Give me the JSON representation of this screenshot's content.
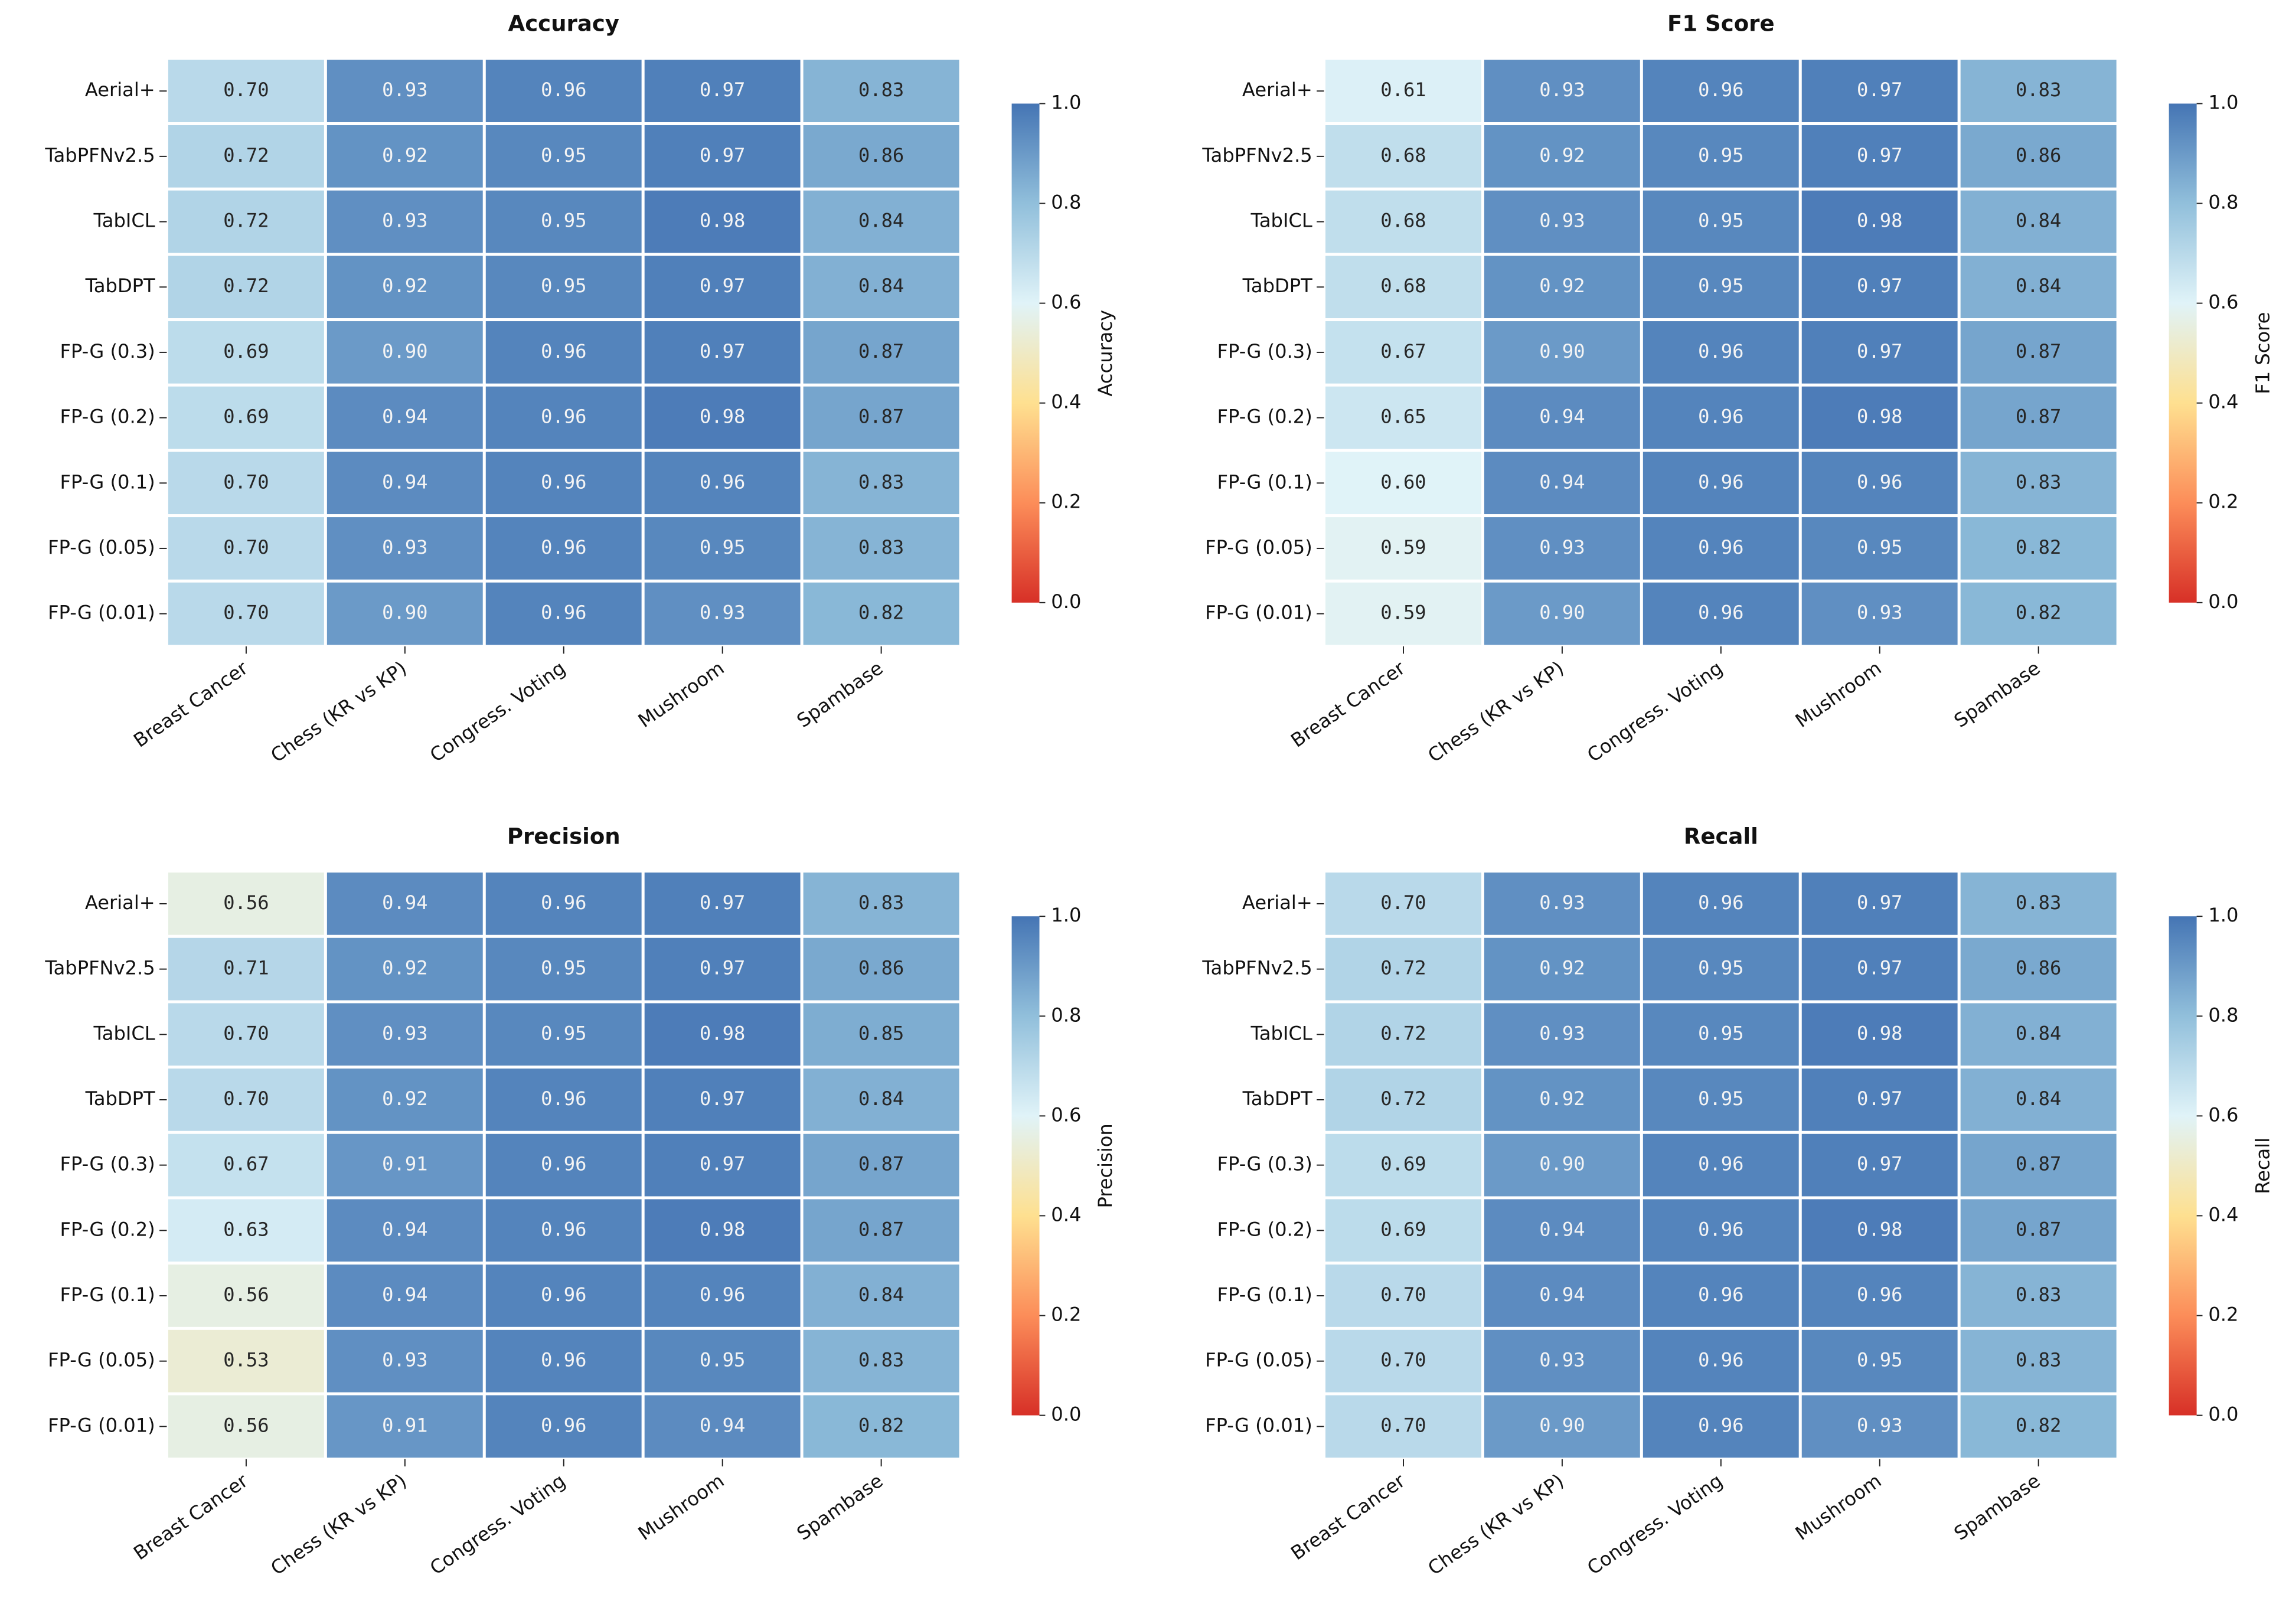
{
  "chart_data": [
    {
      "type": "heatmap",
      "title": "Accuracy",
      "colorbar_label": "Accuracy",
      "categories": [
        "Breast Cancer",
        "Chess (KR vs KP)",
        "Congress. Voting",
        "Mushroom",
        "Spambase"
      ],
      "rows": [
        "Aerial+",
        "TabPFNv2.5",
        "TabICL",
        "TabDPT",
        "FP-G (0.3)",
        "FP-G (0.2)",
        "FP-G (0.1)",
        "FP-G (0.05)",
        "FP-G (0.01)"
      ],
      "values": [
        [
          0.7,
          0.93,
          0.96,
          0.97,
          0.83
        ],
        [
          0.72,
          0.92,
          0.95,
          0.97,
          0.86
        ],
        [
          0.72,
          0.93,
          0.95,
          0.98,
          0.84
        ],
        [
          0.72,
          0.92,
          0.95,
          0.97,
          0.84
        ],
        [
          0.69,
          0.9,
          0.96,
          0.97,
          0.87
        ],
        [
          0.69,
          0.94,
          0.96,
          0.98,
          0.87
        ],
        [
          0.7,
          0.94,
          0.96,
          0.96,
          0.83
        ],
        [
          0.7,
          0.93,
          0.96,
          0.95,
          0.83
        ],
        [
          0.7,
          0.9,
          0.96,
          0.93,
          0.82
        ]
      ],
      "value_labels": [
        [
          "0.70",
          "0.93",
          "0.96",
          "0.97",
          "0.83"
        ],
        [
          "0.72",
          "0.92",
          "0.95",
          "0.97",
          "0.86"
        ],
        [
          "0.72",
          "0.93",
          "0.95",
          "0.98",
          "0.84"
        ],
        [
          "0.72",
          "0.92",
          "0.95",
          "0.97",
          "0.84"
        ],
        [
          "0.69",
          "0.90",
          "0.96",
          "0.97",
          "0.87"
        ],
        [
          "0.69",
          "0.94",
          "0.96",
          "0.98",
          "0.87"
        ],
        [
          "0.70",
          "0.94",
          "0.96",
          "0.96",
          "0.83"
        ],
        [
          "0.70",
          "0.93",
          "0.96",
          "0.95",
          "0.83"
        ],
        [
          "0.70",
          "0.90",
          "0.96",
          "0.93",
          "0.82"
        ]
      ],
      "clim": [
        0,
        1
      ],
      "cticks": [
        {
          "value": 0,
          "label": "0.0"
        },
        {
          "value": 0.2,
          "label": "0.2"
        },
        {
          "value": 0.4,
          "label": "0.4"
        },
        {
          "value": 0.6,
          "label": "0.6"
        },
        {
          "value": 0.8,
          "label": "0.8"
        },
        {
          "value": 1,
          "label": "1.0"
        }
      ],
      "colormap": "RdYlBu"
    },
    {
      "type": "heatmap",
      "title": "F1 Score",
      "colorbar_label": "F1 Score",
      "categories": [
        "Breast Cancer",
        "Chess (KR vs KP)",
        "Congress. Voting",
        "Mushroom",
        "Spambase"
      ],
      "rows": [
        "Aerial+",
        "TabPFNv2.5",
        "TabICL",
        "TabDPT",
        "FP-G (0.3)",
        "FP-G (0.2)",
        "FP-G (0.1)",
        "FP-G (0.05)",
        "FP-G (0.01)"
      ],
      "values": [
        [
          0.61,
          0.93,
          0.96,
          0.97,
          0.83
        ],
        [
          0.68,
          0.92,
          0.95,
          0.97,
          0.86
        ],
        [
          0.68,
          0.93,
          0.95,
          0.98,
          0.84
        ],
        [
          0.68,
          0.92,
          0.95,
          0.97,
          0.84
        ],
        [
          0.67,
          0.9,
          0.96,
          0.97,
          0.87
        ],
        [
          0.65,
          0.94,
          0.96,
          0.98,
          0.87
        ],
        [
          0.6,
          0.94,
          0.96,
          0.96,
          0.83
        ],
        [
          0.59,
          0.93,
          0.96,
          0.95,
          0.82
        ],
        [
          0.59,
          0.9,
          0.96,
          0.93,
          0.82
        ]
      ],
      "value_labels": [
        [
          "0.61",
          "0.93",
          "0.96",
          "0.97",
          "0.83"
        ],
        [
          "0.68",
          "0.92",
          "0.95",
          "0.97",
          "0.86"
        ],
        [
          "0.68",
          "0.93",
          "0.95",
          "0.98",
          "0.84"
        ],
        [
          "0.68",
          "0.92",
          "0.95",
          "0.97",
          "0.84"
        ],
        [
          "0.67",
          "0.90",
          "0.96",
          "0.97",
          "0.87"
        ],
        [
          "0.65",
          "0.94",
          "0.96",
          "0.98",
          "0.87"
        ],
        [
          "0.60",
          "0.94",
          "0.96",
          "0.96",
          "0.83"
        ],
        [
          "0.59",
          "0.93",
          "0.96",
          "0.95",
          "0.82"
        ],
        [
          "0.59",
          "0.90",
          "0.96",
          "0.93",
          "0.82"
        ]
      ],
      "clim": [
        0,
        1
      ],
      "cticks": [
        {
          "value": 0,
          "label": "0.0"
        },
        {
          "value": 0.2,
          "label": "0.2"
        },
        {
          "value": 0.4,
          "label": "0.4"
        },
        {
          "value": 0.6,
          "label": "0.6"
        },
        {
          "value": 0.8,
          "label": "0.8"
        },
        {
          "value": 1,
          "label": "1.0"
        }
      ],
      "colormap": "RdYlBu"
    },
    {
      "type": "heatmap",
      "title": "Precision",
      "colorbar_label": "Precision",
      "categories": [
        "Breast Cancer",
        "Chess (KR vs KP)",
        "Congress. Voting",
        "Mushroom",
        "Spambase"
      ],
      "rows": [
        "Aerial+",
        "TabPFNv2.5",
        "TabICL",
        "TabDPT",
        "FP-G (0.3)",
        "FP-G (0.2)",
        "FP-G (0.1)",
        "FP-G (0.05)",
        "FP-G (0.01)"
      ],
      "values": [
        [
          0.56,
          0.94,
          0.96,
          0.97,
          0.83
        ],
        [
          0.71,
          0.92,
          0.95,
          0.97,
          0.86
        ],
        [
          0.7,
          0.93,
          0.95,
          0.98,
          0.85
        ],
        [
          0.7,
          0.92,
          0.96,
          0.97,
          0.84
        ],
        [
          0.67,
          0.91,
          0.96,
          0.97,
          0.87
        ],
        [
          0.63,
          0.94,
          0.96,
          0.98,
          0.87
        ],
        [
          0.56,
          0.94,
          0.96,
          0.96,
          0.84
        ],
        [
          0.53,
          0.93,
          0.96,
          0.95,
          0.83
        ],
        [
          0.56,
          0.91,
          0.96,
          0.94,
          0.82
        ]
      ],
      "value_labels": [
        [
          "0.56",
          "0.94",
          "0.96",
          "0.97",
          "0.83"
        ],
        [
          "0.71",
          "0.92",
          "0.95",
          "0.97",
          "0.86"
        ],
        [
          "0.70",
          "0.93",
          "0.95",
          "0.98",
          "0.85"
        ],
        [
          "0.70",
          "0.92",
          "0.96",
          "0.97",
          "0.84"
        ],
        [
          "0.67",
          "0.91",
          "0.96",
          "0.97",
          "0.87"
        ],
        [
          "0.63",
          "0.94",
          "0.96",
          "0.98",
          "0.87"
        ],
        [
          "0.56",
          "0.94",
          "0.96",
          "0.96",
          "0.84"
        ],
        [
          "0.53",
          "0.93",
          "0.96",
          "0.95",
          "0.83"
        ],
        [
          "0.56",
          "0.91",
          "0.96",
          "0.94",
          "0.82"
        ]
      ],
      "clim": [
        0,
        1
      ],
      "cticks": [
        {
          "value": 0,
          "label": "0.0"
        },
        {
          "value": 0.2,
          "label": "0.2"
        },
        {
          "value": 0.4,
          "label": "0.4"
        },
        {
          "value": 0.6,
          "label": "0.6"
        },
        {
          "value": 0.8,
          "label": "0.8"
        },
        {
          "value": 1,
          "label": "1.0"
        }
      ],
      "colormap": "RdYlBu"
    },
    {
      "type": "heatmap",
      "title": "Recall",
      "colorbar_label": "Recall",
      "categories": [
        "Breast Cancer",
        "Chess (KR vs KP)",
        "Congress. Voting",
        "Mushroom",
        "Spambase"
      ],
      "rows": [
        "Aerial+",
        "TabPFNv2.5",
        "TabICL",
        "TabDPT",
        "FP-G (0.3)",
        "FP-G (0.2)",
        "FP-G (0.1)",
        "FP-G (0.05)",
        "FP-G (0.01)"
      ],
      "values": [
        [
          0.7,
          0.93,
          0.96,
          0.97,
          0.83
        ],
        [
          0.72,
          0.92,
          0.95,
          0.97,
          0.86
        ],
        [
          0.72,
          0.93,
          0.95,
          0.98,
          0.84
        ],
        [
          0.72,
          0.92,
          0.95,
          0.97,
          0.84
        ],
        [
          0.69,
          0.9,
          0.96,
          0.97,
          0.87
        ],
        [
          0.69,
          0.94,
          0.96,
          0.98,
          0.87
        ],
        [
          0.7,
          0.94,
          0.96,
          0.96,
          0.83
        ],
        [
          0.7,
          0.93,
          0.96,
          0.95,
          0.83
        ],
        [
          0.7,
          0.9,
          0.96,
          0.93,
          0.82
        ]
      ],
      "value_labels": [
        [
          "0.70",
          "0.93",
          "0.96",
          "0.97",
          "0.83"
        ],
        [
          "0.72",
          "0.92",
          "0.95",
          "0.97",
          "0.86"
        ],
        [
          "0.72",
          "0.93",
          "0.95",
          "0.98",
          "0.84"
        ],
        [
          "0.72",
          "0.92",
          "0.95",
          "0.97",
          "0.84"
        ],
        [
          "0.69",
          "0.90",
          "0.96",
          "0.97",
          "0.87"
        ],
        [
          "0.69",
          "0.94",
          "0.96",
          "0.98",
          "0.87"
        ],
        [
          "0.70",
          "0.94",
          "0.96",
          "0.96",
          "0.83"
        ],
        [
          "0.70",
          "0.93",
          "0.96",
          "0.95",
          "0.83"
        ],
        [
          "0.70",
          "0.90",
          "0.96",
          "0.93",
          "0.82"
        ]
      ],
      "clim": [
        0,
        1
      ],
      "cticks": [
        {
          "value": 0,
          "label": "0.0"
        },
        {
          "value": 0.2,
          "label": "0.2"
        },
        {
          "value": 0.4,
          "label": "0.4"
        },
        {
          "value": 0.6,
          "label": "0.6"
        },
        {
          "value": 0.8,
          "label": "0.8"
        },
        {
          "value": 1,
          "label": "1.0"
        }
      ],
      "colormap": "RdYlBu"
    }
  ]
}
